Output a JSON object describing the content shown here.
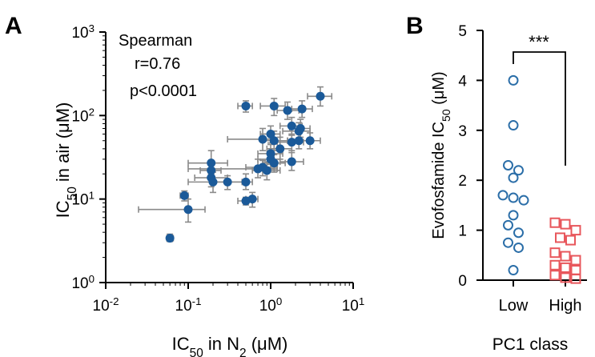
{
  "panels": {
    "A": {
      "letter": "A"
    },
    "B": {
      "letter": "B"
    }
  },
  "colors": {
    "panelA_point": "#1b5a99",
    "errorbar": "#8a8a8a",
    "low_group": "#2b6ea8",
    "high_group": "#e8575c",
    "axis": "#000000"
  },
  "chart_data": [
    {
      "type": "scatter",
      "panel": "A",
      "scale": "log-log",
      "xlabel": "IC50 in N2 (μM)",
      "ylabel": "IC50 in air (μM)",
      "xlim": [
        0.01,
        10
      ],
      "ylim": [
        1,
        1000
      ],
      "x_ticks": [
        "10-2",
        "10-1",
        "100",
        "101"
      ],
      "y_ticks": [
        "100",
        "101",
        "102",
        "103"
      ],
      "annotation": [
        "Spearman",
        "r=0.76",
        "p<0.0001"
      ],
      "points": [
        {
          "x": 0.06,
          "y": 3.4,
          "xerr": [
            0.055,
            0.066
          ],
          "yerr": [
            3.1,
            3.8
          ]
        },
        {
          "x": 0.09,
          "y": 11,
          "xerr": [
            0.08,
            0.1
          ],
          "yerr": [
            9.5,
            12.5
          ]
        },
        {
          "x": 0.1,
          "y": 7.5,
          "xerr": [
            0.025,
            0.16
          ],
          "yerr": [
            5.3,
            10
          ]
        },
        {
          "x": 0.19,
          "y": 27,
          "xerr": [
            0.1,
            0.3
          ],
          "yerr": [
            20,
            38
          ]
        },
        {
          "x": 0.19,
          "y": 22,
          "xerr": [
            0.14,
            0.25
          ],
          "yerr": [
            17,
            28
          ]
        },
        {
          "x": 0.19,
          "y": 18,
          "xerr": [
            0.12,
            0.3
          ],
          "yerr": [
            14,
            23
          ]
        },
        {
          "x": 0.2,
          "y": 16,
          "xerr": [
            0.1,
            0.3
          ],
          "yerr": [
            12,
            21
          ]
        },
        {
          "x": 0.3,
          "y": 16,
          "xerr": [
            0.2,
            0.45
          ],
          "yerr": [
            13,
            19
          ]
        },
        {
          "x": 0.5,
          "y": 9.5,
          "xerr": [
            0.4,
            0.6
          ],
          "yerr": [
            8.5,
            10.5
          ]
        },
        {
          "x": 0.5,
          "y": 16,
          "xerr": [
            0.2,
            0.6
          ],
          "yerr": [
            13,
            20
          ]
        },
        {
          "x": 0.5,
          "y": 130,
          "xerr": [
            0.4,
            0.6
          ],
          "yerr": [
            110,
            150
          ]
        },
        {
          "x": 0.6,
          "y": 10,
          "xerr": [
            0.5,
            0.7
          ],
          "yerr": [
            8,
            12
          ]
        },
        {
          "x": 0.7,
          "y": 23,
          "xerr": [
            0.1,
            1.2
          ],
          "yerr": [
            18,
            30
          ]
        },
        {
          "x": 0.8,
          "y": 24,
          "xerr": [
            0.5,
            1.2
          ],
          "yerr": [
            19,
            29
          ]
        },
        {
          "x": 0.8,
          "y": 52,
          "xerr": [
            0.3,
            1.0
          ],
          "yerr": [
            38,
            70
          ]
        },
        {
          "x": 0.9,
          "y": 22,
          "xerr": [
            0.6,
            1.3
          ],
          "yerr": [
            17,
            28
          ]
        },
        {
          "x": 1.0,
          "y": 35,
          "xerr": [
            0.7,
            1.4
          ],
          "yerr": [
            26,
            45
          ]
        },
        {
          "x": 1.0,
          "y": 30,
          "xerr": [
            0.7,
            1.3
          ],
          "yerr": [
            23,
            40
          ]
        },
        {
          "x": 1.1,
          "y": 27,
          "xerr": [
            0.8,
            1.5
          ],
          "yerr": [
            21,
            34
          ]
        },
        {
          "x": 1.0,
          "y": 60,
          "xerr": [
            0.75,
            1.3
          ],
          "yerr": [
            47,
            75
          ]
        },
        {
          "x": 1.1,
          "y": 50,
          "xerr": [
            0.8,
            1.6
          ],
          "yerr": [
            38,
            65
          ]
        },
        {
          "x": 1.1,
          "y": 130,
          "xerr": [
            0.75,
            1.5
          ],
          "yerr": [
            100,
            160
          ]
        },
        {
          "x": 1.3,
          "y": 40,
          "xerr": [
            0.9,
            1.8
          ],
          "yerr": [
            30,
            55
          ]
        },
        {
          "x": 1.6,
          "y": 115,
          "xerr": [
            1.2,
            2.2
          ],
          "yerr": [
            90,
            145
          ]
        },
        {
          "x": 1.8,
          "y": 75,
          "xerr": [
            1.3,
            2.4
          ],
          "yerr": [
            58,
            95
          ]
        },
        {
          "x": 1.8,
          "y": 48,
          "xerr": [
            1.2,
            2.5
          ],
          "yerr": [
            38,
            60
          ]
        },
        {
          "x": 1.8,
          "y": 28,
          "xerr": [
            1.3,
            2.5
          ],
          "yerr": [
            22,
            36
          ]
        },
        {
          "x": 2.2,
          "y": 65,
          "xerr": [
            1.4,
            3.0
          ],
          "yerr": [
            50,
            82
          ]
        },
        {
          "x": 2.2,
          "y": 50,
          "xerr": [
            1.6,
            3.0
          ],
          "yerr": [
            40,
            63
          ]
        },
        {
          "x": 2.4,
          "y": 120,
          "xerr": [
            1.8,
            3.2
          ],
          "yerr": [
            95,
            150
          ]
        },
        {
          "x": 2.3,
          "y": 70,
          "xerr": [
            1.7,
            3.0
          ],
          "yerr": [
            55,
            90
          ]
        },
        {
          "x": 3.0,
          "y": 50,
          "xerr": [
            2.2,
            4.0
          ],
          "yerr": [
            40,
            62
          ]
        },
        {
          "x": 4.0,
          "y": 170,
          "xerr": [
            2.8,
            5.5
          ],
          "yerr": [
            130,
            220
          ]
        }
      ]
    },
    {
      "type": "scatter",
      "panel": "B",
      "xlabel": "PC1 class",
      "ylabel": "Evofosfamide IC50 (μM)",
      "categories": [
        "Low",
        "High"
      ],
      "ylim": [
        0,
        5
      ],
      "y_ticks": [
        "0",
        "1",
        "2",
        "3",
        "4",
        "5"
      ],
      "significance": "***",
      "series": [
        {
          "name": "Low",
          "values": [
            4.0,
            3.1,
            2.3,
            2.2,
            2.05,
            1.7,
            1.65,
            1.6,
            1.3,
            1.1,
            0.95,
            0.75,
            0.65,
            0.2
          ]
        },
        {
          "name": "High",
          "values": [
            1.15,
            1.12,
            1.0,
            0.85,
            0.8,
            0.55,
            0.48,
            0.4,
            0.3,
            0.25,
            0.2,
            0.1,
            0.05,
            0.03
          ]
        }
      ]
    }
  ]
}
